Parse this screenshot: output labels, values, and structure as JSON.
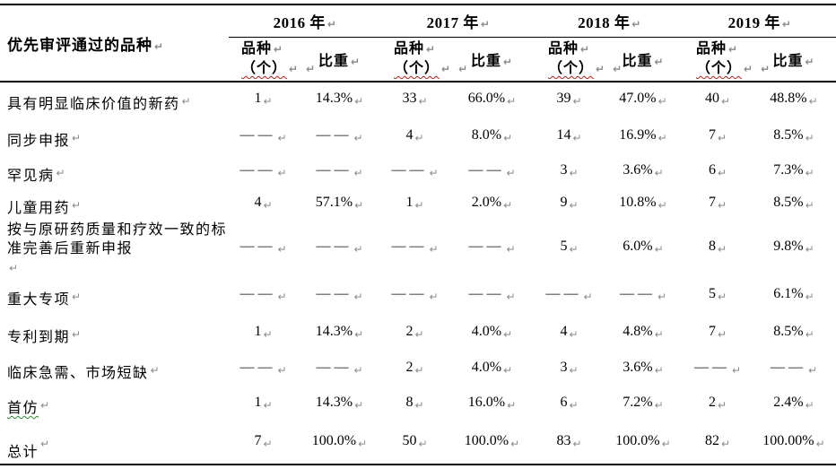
{
  "document": {
    "background": "#ffffff",
    "text_color": "#000000",
    "border_color": "#000000",
    "paragraph_mark": "↵",
    "paragraph_mark_color": "#8a8a8a",
    "spellcheck_red": "#dd1100",
    "spellcheck_green": "#2e8b2e"
  },
  "table": {
    "corner_header": "优先审评通过的品种",
    "year_headers": [
      "2016 年",
      "2017 年",
      "2018 年",
      "2019 年"
    ],
    "subheader": {
      "count_line1": "品种",
      "count_line2": "（个）",
      "share": "比重"
    },
    "rows": [
      {
        "label": "具有明显临床价值的新药",
        "values": [
          "1",
          "14.3%",
          "33",
          "66.0%",
          "39",
          "47.0%",
          "40",
          "48.8%"
        ]
      },
      {
        "label": "同步申报",
        "values": [
          "——",
          "——",
          "4",
          "8.0%",
          "14",
          "16.9%",
          "7",
          "8.5%"
        ]
      },
      {
        "label": "罕见病",
        "values": [
          "——",
          "——",
          "——",
          "——",
          "3",
          "3.6%",
          "6",
          "7.3%"
        ]
      },
      {
        "label": "儿童用药",
        "values": [
          "4",
          "57.1%",
          "1",
          "2.0%",
          "9",
          "10.8%",
          "7",
          "8.5%"
        ]
      },
      {
        "label": "按与原研药质量和疗效一致的标准完善后重新申报",
        "values": [
          "——",
          "——",
          "——",
          "——",
          "5",
          "6.0%",
          "8",
          "9.8%"
        ]
      },
      {
        "label": "重大专项",
        "values": [
          "——",
          "——",
          "——",
          "——",
          "——",
          "——",
          "5",
          "6.1%"
        ]
      },
      {
        "label": "专利到期",
        "values": [
          "1",
          "14.3%",
          "2",
          "4.0%",
          "4",
          "4.8%",
          "7",
          "8.5%"
        ]
      },
      {
        "label": "临床急需、市场短缺",
        "values": [
          "——",
          "——",
          "2",
          "4.0%",
          "3",
          "3.6%",
          "——",
          "——"
        ]
      },
      {
        "label": "首仿",
        "label_underline": "green-wavy",
        "values": [
          "1",
          "14.3%",
          "8",
          "16.0%",
          "6",
          "7.2%",
          "2",
          "2.4%"
        ]
      },
      {
        "label": "总计",
        "values": [
          "7",
          "100.0%",
          "50",
          "100.0%",
          "83",
          "100.0%",
          "82",
          "100.00%"
        ]
      }
    ]
  }
}
